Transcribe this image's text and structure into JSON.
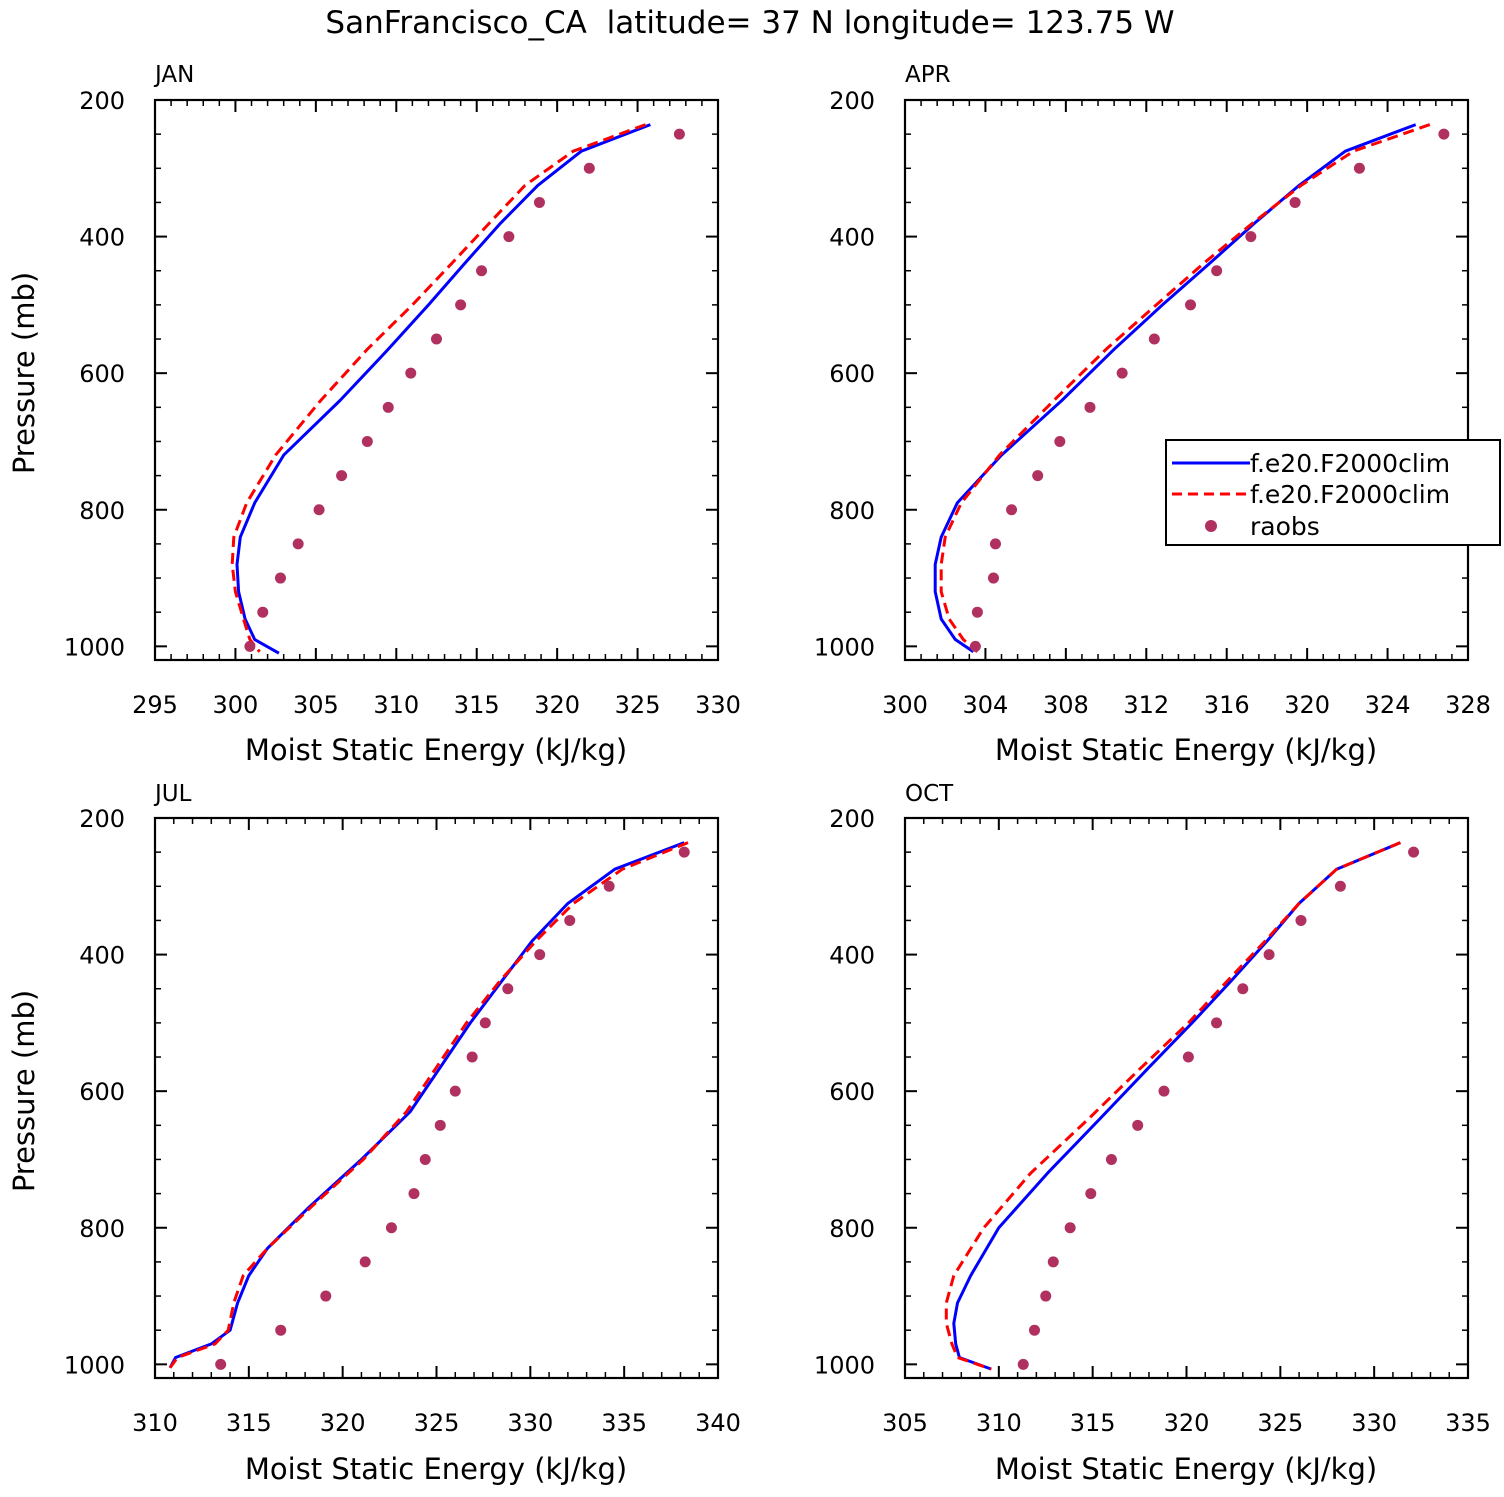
{
  "figure": {
    "title": "SanFrancisco_CA  latitude= 37 N longitude= 123.75 W"
  },
  "legend": {
    "entries": [
      {
        "label": "f.e20.F2000clim",
        "color": "#0000ff",
        "style": "solid"
      },
      {
        "label": "f.e20.F2000clim",
        "color": "#ff0000",
        "style": "dashed"
      },
      {
        "label": "raobs",
        "color": "#b03060",
        "style": "marker"
      }
    ]
  },
  "chart_data": [
    {
      "type": "line",
      "panel": "JAN",
      "xlabel": "Moist Static Energy (kJ/kg)",
      "ylabel": "Pressure (mb)",
      "xlim": [
        295,
        330
      ],
      "ylim": [
        1000,
        200
      ],
      "xticks": [
        295,
        300,
        305,
        310,
        315,
        320,
        325,
        330
      ],
      "yticks": [
        200,
        400,
        600,
        800,
        1000
      ],
      "series": [
        {
          "name": "f.e20.F2000clim",
          "color": "#0000ff",
          "style": "solid",
          "x": [
            325.8,
            321.5,
            318.8,
            316.5,
            314.3,
            312.0,
            309.5,
            306.5,
            303.0,
            301.2,
            300.3,
            300.1,
            300.2,
            300.6,
            301.2,
            302.7
          ],
          "y": [
            236,
            275,
            325,
            380,
            438,
            500,
            565,
            640,
            720,
            790,
            840,
            880,
            920,
            960,
            990,
            1010
          ]
        },
        {
          "name": "f.e20.F2000clim",
          "color": "#ff0000",
          "style": "dashed",
          "x": [
            325.5,
            321.0,
            318.0,
            315.8,
            313.5,
            311.0,
            308.2,
            305.3,
            302.5,
            300.7,
            299.9,
            299.8,
            300.0,
            300.5,
            300.9,
            301.5
          ],
          "y": [
            236,
            275,
            325,
            380,
            438,
            500,
            565,
            640,
            720,
            790,
            840,
            880,
            920,
            960,
            990,
            1008
          ]
        },
        {
          "name": "raobs",
          "color": "#b03060",
          "style": "marker",
          "x": [
            327.6,
            322.0,
            318.9,
            317.0,
            315.3,
            314.0,
            312.5,
            310.9,
            309.5,
            308.2,
            306.6,
            305.2,
            303.9,
            302.8,
            301.7,
            300.9
          ],
          "y": [
            250,
            300,
            350,
            400,
            450,
            500,
            550,
            600,
            650,
            700,
            750,
            800,
            850,
            900,
            950,
            1000
          ]
        }
      ]
    },
    {
      "type": "line",
      "panel": "APR",
      "xlabel": "Moist Static Energy (kJ/kg)",
      "ylabel": "",
      "xlim": [
        300,
        328
      ],
      "ylim": [
        1000,
        200
      ],
      "xticks": [
        300,
        304,
        308,
        312,
        316,
        320,
        324,
        328
      ],
      "yticks": [
        200,
        400,
        600,
        800,
        1000
      ],
      "series": [
        {
          "name": "f.e20.F2000clim",
          "color": "#0000ff",
          "style": "solid",
          "x": [
            325.4,
            321.9,
            319.6,
            317.4,
            315.2,
            312.8,
            310.4,
            307.8,
            304.8,
            302.6,
            301.8,
            301.5,
            301.5,
            301.8,
            302.5,
            303.4
          ],
          "y": [
            236,
            275,
            325,
            380,
            438,
            500,
            565,
            640,
            720,
            790,
            840,
            880,
            920,
            960,
            990,
            1008
          ]
        },
        {
          "name": "f.e20.F2000clim",
          "color": "#ff0000",
          "style": "dashed",
          "x": [
            326.1,
            322.3,
            319.7,
            317.3,
            314.9,
            312.5,
            310.0,
            307.4,
            304.7,
            302.8,
            302.0,
            301.8,
            301.8,
            302.2,
            302.9,
            303.6
          ],
          "y": [
            236,
            275,
            325,
            380,
            438,
            500,
            565,
            640,
            720,
            790,
            840,
            880,
            920,
            960,
            990,
            1008
          ]
        },
        {
          "name": "raobs",
          "color": "#b03060",
          "style": "marker",
          "x": [
            326.8,
            322.6,
            319.4,
            317.2,
            315.5,
            314.2,
            312.4,
            310.8,
            309.2,
            307.7,
            306.6,
            305.3,
            304.5,
            304.4,
            303.6,
            303.5
          ],
          "y": [
            250,
            300,
            350,
            400,
            450,
            500,
            550,
            600,
            650,
            700,
            750,
            800,
            850,
            900,
            950,
            1000
          ]
        }
      ]
    },
    {
      "type": "line",
      "panel": "JUL",
      "xlabel": "Moist Static Energy (kJ/kg)",
      "ylabel": "Pressure (mb)",
      "xlim": [
        310,
        340
      ],
      "ylim": [
        1000,
        200
      ],
      "xticks": [
        310,
        315,
        320,
        325,
        330,
        335,
        340
      ],
      "yticks": [
        200,
        400,
        600,
        800,
        1000
      ],
      "series": [
        {
          "name": "f.e20.F2000clim",
          "color": "#0000ff",
          "style": "solid",
          "x": [
            338.2,
            334.5,
            332.0,
            330.1,
            328.5,
            326.8,
            325.2,
            323.6,
            321.0,
            318.2,
            316.0,
            315.0,
            314.4,
            314.0,
            313.0,
            311.1,
            310.8
          ],
          "y": [
            236,
            275,
            325,
            380,
            438,
            500,
            565,
            630,
            700,
            770,
            830,
            870,
            910,
            950,
            970,
            990,
            1005
          ]
        },
        {
          "name": "f.e20.F2000clim",
          "color": "#ff0000",
          "style": "dashed",
          "x": [
            338.4,
            334.9,
            332.3,
            330.3,
            328.4,
            326.6,
            325.0,
            323.4,
            321.1,
            318.3,
            316.0,
            314.7,
            314.2,
            313.9,
            313.2,
            311.2,
            310.8
          ],
          "y": [
            236,
            275,
            325,
            380,
            438,
            500,
            565,
            630,
            700,
            770,
            830,
            870,
            910,
            950,
            970,
            990,
            1005
          ]
        },
        {
          "name": "raobs",
          "color": "#b03060",
          "style": "marker",
          "x": [
            338.2,
            334.2,
            332.1,
            330.5,
            328.8,
            327.6,
            326.9,
            326.0,
            325.2,
            324.4,
            323.8,
            322.6,
            321.2,
            319.1,
            316.7,
            313.5
          ],
          "y": [
            250,
            300,
            350,
            400,
            450,
            500,
            550,
            600,
            650,
            700,
            750,
            800,
            850,
            900,
            950,
            1000
          ]
        }
      ]
    },
    {
      "type": "line",
      "panel": "OCT",
      "xlabel": "Moist Static Energy (kJ/kg)",
      "ylabel": "",
      "xlim": [
        305,
        335
      ],
      "ylim": [
        1000,
        200
      ],
      "xticks": [
        305,
        310,
        315,
        320,
        325,
        330,
        335
      ],
      "yticks": [
        200,
        400,
        600,
        800,
        1000
      ],
      "series": [
        {
          "name": "f.e20.F2000clim",
          "color": "#0000ff",
          "style": "solid",
          "x": [
            331.4,
            328.0,
            326.0,
            324.3,
            322.4,
            320.3,
            318.0,
            315.4,
            312.6,
            310.0,
            308.5,
            307.8,
            307.6,
            307.7,
            307.9,
            309.6
          ],
          "y": [
            236,
            275,
            325,
            380,
            438,
            500,
            565,
            640,
            720,
            800,
            870,
            910,
            940,
            970,
            990,
            1007
          ]
        },
        {
          "name": "f.e20.F2000clim",
          "color": "#ff0000",
          "style": "dashed",
          "x": [
            331.4,
            328.0,
            326.0,
            324.2,
            322.2,
            320.1,
            317.6,
            314.8,
            311.7,
            309.2,
            307.6,
            307.2,
            307.2,
            307.5,
            307.8,
            309.6
          ],
          "y": [
            236,
            275,
            325,
            380,
            438,
            500,
            565,
            640,
            720,
            800,
            870,
            910,
            940,
            970,
            990,
            1007
          ]
        },
        {
          "name": "raobs",
          "color": "#b03060",
          "style": "marker",
          "x": [
            332.1,
            328.2,
            326.1,
            324.4,
            323.0,
            321.6,
            320.1,
            318.8,
            317.4,
            316.0,
            314.9,
            313.8,
            312.9,
            312.5,
            311.9,
            311.3
          ],
          "y": [
            250,
            300,
            350,
            400,
            450,
            500,
            550,
            600,
            650,
            700,
            750,
            800,
            850,
            900,
            950,
            1000
          ]
        }
      ]
    }
  ]
}
